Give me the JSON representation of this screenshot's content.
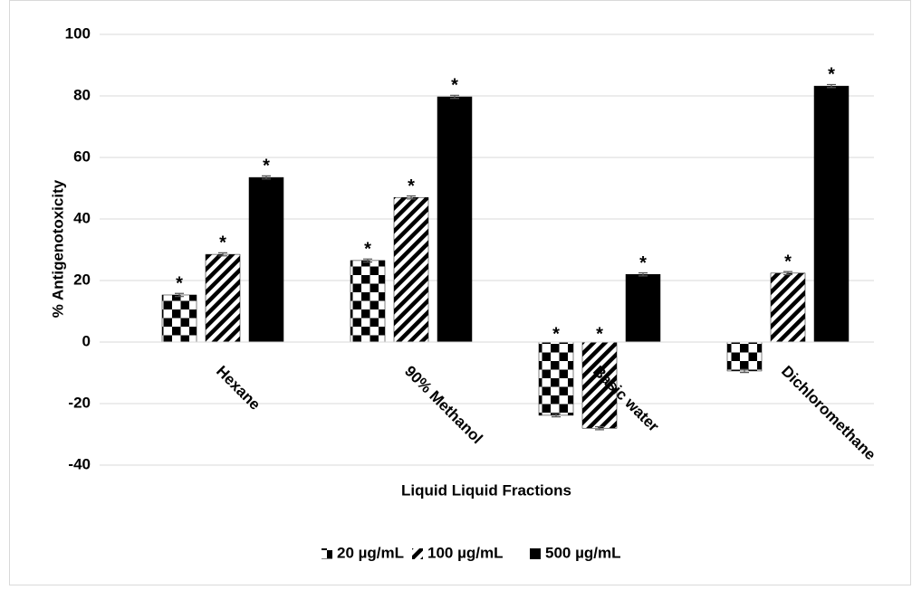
{
  "chart_data": {
    "type": "bar",
    "y_label": "% Antigenotoxicity",
    "x_label": "Liquid Liquid Fractions",
    "categories": [
      "Hexane",
      "90% Methanol",
      "Basic water",
      "Dichloromethane"
    ],
    "series": [
      {
        "name": "20 µg/mL",
        "color": "#000000",
        "pattern": "checker",
        "values": [
          15.3,
          26.5,
          -23.8,
          -9.4
        ],
        "errors": [
          0.5,
          0.5,
          0.5,
          0.5
        ],
        "significance": [
          "*",
          "*",
          "*",
          null
        ]
      },
      {
        "name": "100 µg/mL",
        "color": "#000000",
        "pattern": "stripes",
        "values": [
          28.5,
          47,
          -28,
          22.4
        ],
        "errors": [
          0.5,
          0.5,
          0.5,
          0.5
        ],
        "significance": [
          "*",
          "*",
          "*",
          "*"
        ]
      },
      {
        "name": "500 µg/mL",
        "color": "#000000",
        "pattern": "solid",
        "values": [
          53.5,
          79.7,
          22,
          83.2
        ],
        "errors": [
          0.5,
          0.5,
          0.5,
          0.5
        ],
        "significance": [
          "*",
          "*",
          "*",
          "*"
        ]
      }
    ],
    "ylim": [
      -40,
      100
    ],
    "yticks": [
      -40,
      -20,
      0,
      20,
      40,
      60,
      80,
      100
    ],
    "grid": true,
    "legend": "bottom"
  }
}
